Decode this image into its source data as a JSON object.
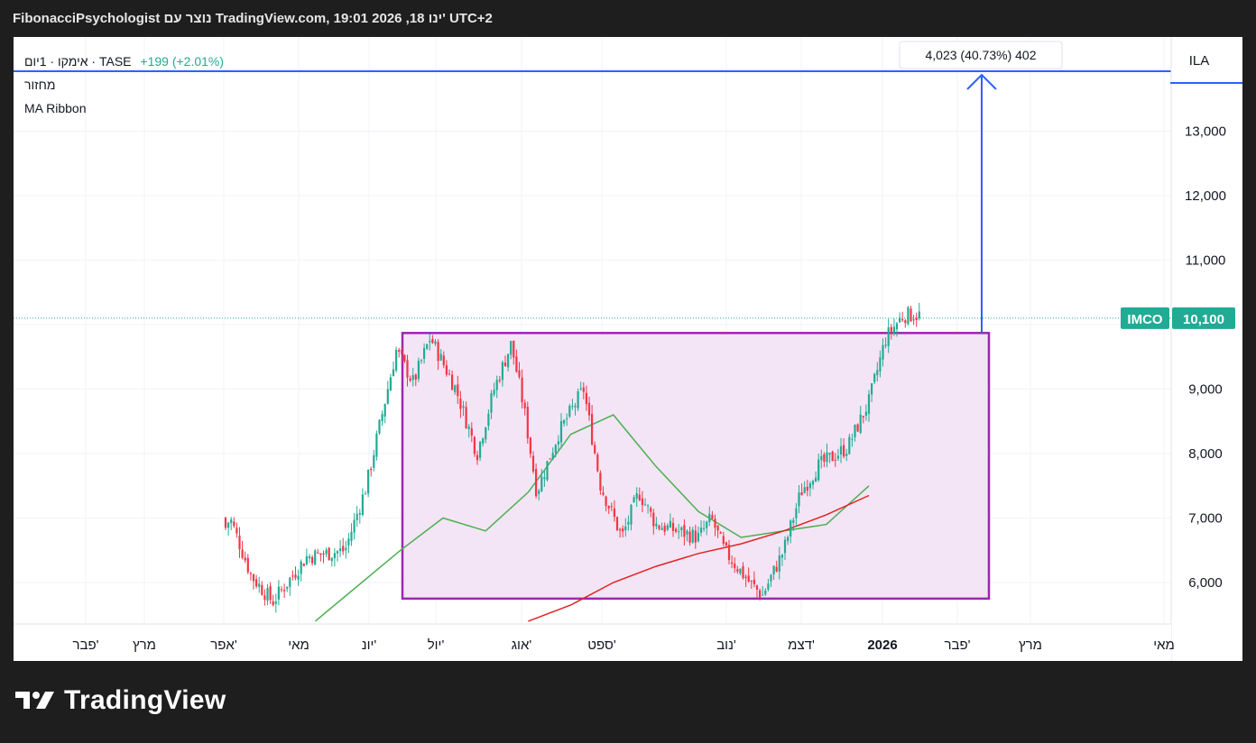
{
  "header": {
    "text": "FibonacciPsychologist נוצר עם TradingView.com, 19:01 2026 ,18 ינו' UTC+2"
  },
  "legend": {
    "title": "אימקו · 1יום · TASE",
    "change": "+199 (+2.01%)",
    "indicator_1": "מחזור",
    "indicator_2": "MA Ribbon"
  },
  "currency_label": "ILA",
  "price_tag": {
    "symbol": "IMCO",
    "value": "10,100"
  },
  "measure_label": "4,023 (40.73%) 402",
  "logo": {
    "text": "TradingView"
  },
  "colors": {
    "up": "#22ab94",
    "down": "#f23645",
    "ma_fast": "#4caf50",
    "ma_slow": "#e02424",
    "box_fill": "#f3e5f5",
    "box_stroke": "#9c27b0",
    "accent": "#2962ff"
  },
  "chart_data": {
    "type": "candlestick",
    "y_ticks": [
      "13,000",
      "12,000",
      "11,000",
      "9,000",
      "8,000",
      "7,000",
      "6,000"
    ],
    "y_tick_values": [
      13000,
      12000,
      11000,
      9000,
      8000,
      7000,
      6000
    ],
    "x_ticks": [
      "פבר'",
      "מרץ",
      "אפר'",
      "מאי",
      "יונ'",
      "יול'",
      "אוג'",
      "ספט'",
      "נוב'",
      "דצמ'",
      "2026",
      "פבר'",
      "מרץ",
      "מאי"
    ],
    "ylim": [
      5400,
      14200
    ],
    "last_price": 10100,
    "range_box": {
      "low": 5750,
      "high": 9870,
      "start": "יול'",
      "end": "פבר'"
    },
    "measure": {
      "from": 9870,
      "to": 13893,
      "change": 4023,
      "percent": 40.73,
      "bars": 402
    },
    "price_path": [
      [
        0.0,
        5200
      ],
      [
        0.25,
        6700
      ],
      [
        0.33,
        8500
      ],
      [
        0.38,
        6900
      ],
      [
        0.41,
        7600
      ],
      [
        0.45,
        6300
      ],
      [
        0.5,
        7000
      ],
      [
        0.55,
        6100
      ],
      [
        0.6,
        5700
      ],
      [
        0.68,
        6400
      ],
      [
        0.77,
        6500
      ],
      [
        0.82,
        7500
      ],
      [
        0.89,
        9600
      ],
      [
        0.93,
        9100
      ],
      [
        0.97,
        9800
      ],
      [
        1.03,
        9000
      ],
      [
        1.08,
        8000
      ],
      [
        1.12,
        9000
      ],
      [
        1.16,
        9700
      ],
      [
        1.19,
        8700
      ],
      [
        1.22,
        7400
      ],
      [
        1.27,
        8300
      ],
      [
        1.33,
        9000
      ],
      [
        1.37,
        7500
      ],
      [
        1.42,
        6700
      ],
      [
        1.46,
        7400
      ],
      [
        1.5,
        6900
      ],
      [
        1.55,
        6800
      ],
      [
        1.6,
        6700
      ],
      [
        1.63,
        7000
      ],
      [
        1.66,
        6500
      ],
      [
        1.72,
        6000
      ],
      [
        1.75,
        5800
      ],
      [
        1.8,
        6500
      ],
      [
        1.84,
        7400
      ],
      [
        1.88,
        7800
      ],
      [
        1.95,
        8100
      ],
      [
        2.0,
        8800
      ],
      [
        2.04,
        9800
      ],
      [
        2.08,
        10150
      ]
    ],
    "ma_fast": [
      [
        0.7,
        5400
      ],
      [
        0.9,
        6500
      ],
      [
        1.0,
        7000
      ],
      [
        1.1,
        6800
      ],
      [
        1.2,
        7400
      ],
      [
        1.3,
        8300
      ],
      [
        1.4,
        8600
      ],
      [
        1.5,
        7800
      ],
      [
        1.6,
        7100
      ],
      [
        1.7,
        6700
      ],
      [
        1.8,
        6800
      ],
      [
        1.9,
        6900
      ],
      [
        2.0,
        7500
      ]
    ],
    "ma_slow": [
      [
        1.2,
        5400
      ],
      [
        1.3,
        5650
      ],
      [
        1.4,
        6000
      ],
      [
        1.5,
        6250
      ],
      [
        1.6,
        6450
      ],
      [
        1.7,
        6600
      ],
      [
        1.8,
        6800
      ],
      [
        1.9,
        7050
      ],
      [
        2.0,
        7350
      ]
    ]
  }
}
